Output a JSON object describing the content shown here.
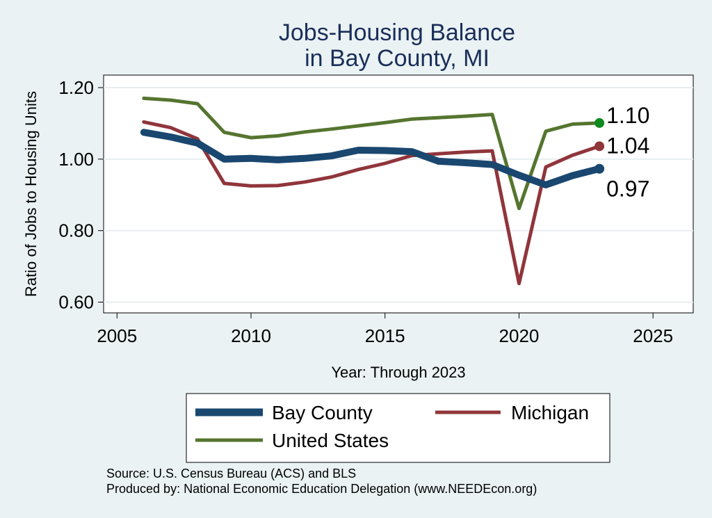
{
  "chart_data": {
    "type": "line",
    "title": [
      "Jobs-Housing Balance",
      "in Bay County, MI"
    ],
    "xlabel": "Year: Through 2023",
    "ylabel": "Ratio of Jobs to Housing Units",
    "xlim": [
      2004.5,
      2026.5
    ],
    "ylim": [
      0.57,
      1.235
    ],
    "xticks": [
      2005,
      2010,
      2015,
      2020,
      2025
    ],
    "xtick_labels": [
      "2005",
      "2010",
      "2015",
      "2020",
      "2025"
    ],
    "yticks": [
      0.6,
      0.8,
      1.0,
      1.2
    ],
    "ytick_labels": [
      "0.60",
      "0.80",
      "1.00",
      "1.20"
    ],
    "grid": true,
    "x": [
      2006,
      2007,
      2008,
      2009,
      2010,
      2011,
      2012,
      2013,
      2014,
      2015,
      2016,
      2017,
      2018,
      2019,
      2020,
      2021,
      2022,
      2023
    ],
    "series": [
      {
        "name": "Bay County",
        "color": "#1a476f",
        "values": [
          1.075,
          1.062,
          1.045,
          1.0,
          1.002,
          0.998,
          1.002,
          1.009,
          1.025,
          1.024,
          1.021,
          0.994,
          0.99,
          0.985,
          0.955,
          0.928,
          0.954,
          0.973
        ],
        "end_label": "0.97"
      },
      {
        "name": "Michigan",
        "color": "#90353b",
        "values": [
          1.104,
          1.088,
          1.057,
          0.932,
          0.925,
          0.926,
          0.936,
          0.95,
          0.971,
          0.988,
          1.01,
          1.015,
          1.02,
          1.023,
          0.652,
          0.978,
          1.011,
          1.036
        ],
        "end_label": "1.04"
      },
      {
        "name": "United States",
        "color": "#55752f",
        "values": [
          1.17,
          1.165,
          1.155,
          1.075,
          1.06,
          1.065,
          1.076,
          1.084,
          1.093,
          1.102,
          1.112,
          1.116,
          1.12,
          1.125,
          0.862,
          1.078,
          1.098,
          1.101
        ],
        "end_label": "1.10"
      }
    ],
    "end_marker_colors": {
      "Bay County": "#1a476f",
      "Michigan": "#90353b",
      "United States": "#0f8a1e"
    },
    "legend_position": "bottom",
    "source_lines": [
      "Source: U.S. Census Bureau (ACS) and BLS",
      "Produced by: National Economic Education Delegation (www.NEEDEcon.org)"
    ]
  }
}
